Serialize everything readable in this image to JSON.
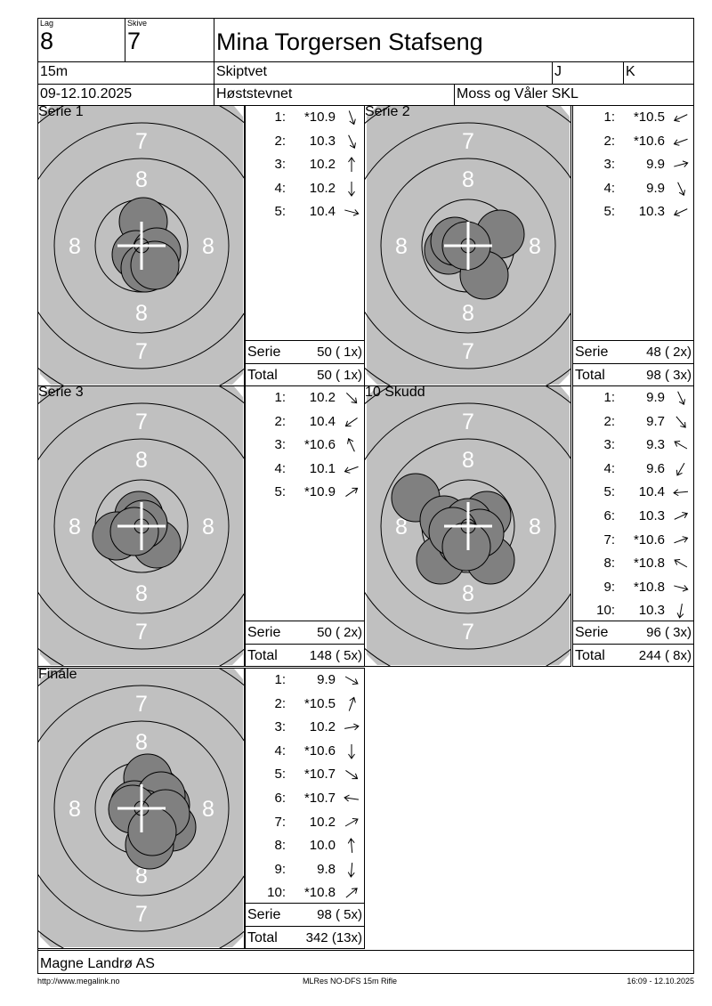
{
  "header": {
    "lag_label": "Lag",
    "lag": "8",
    "skive_label": "Skive",
    "skive": "7",
    "name": "Mina Torgersen Stafseng",
    "distance": "15m",
    "club": "Skiptvet",
    "class1": "J",
    "class2": "K",
    "date": "09-12.10.2025",
    "event": "Høststevnet",
    "organizer": "Moss og Våler SKL"
  },
  "colors": {
    "target_bg": "#c0c0c0",
    "shot": "#808080",
    "numbers": "#ffffff"
  },
  "panels": [
    {
      "title": "Serie 1",
      "shots": [
        {
          "n": "1:",
          "v": "*10.9",
          "dir": 70
        },
        {
          "n": "2:",
          "v": "10.3",
          "dir": 65
        },
        {
          "n": "3:",
          "v": "10.2",
          "dir": -90
        },
        {
          "n": "4:",
          "v": "10.2",
          "dir": 90
        },
        {
          "n": "5:",
          "v": "10.4",
          "dir": 15
        }
      ],
      "serie_label": "Serie",
      "serie": "50 ( 1x)",
      "total_label": "Total",
      "total": "50 ( 1x)"
    },
    {
      "title": "Serie 2",
      "shots": [
        {
          "n": "1:",
          "v": "*10.5",
          "dir": 155
        },
        {
          "n": "2:",
          "v": "*10.6",
          "dir": 160
        },
        {
          "n": "3:",
          "v": "9.9",
          "dir": -15
        },
        {
          "n": "4:",
          "v": "9.9",
          "dir": 65
        },
        {
          "n": "5:",
          "v": "10.3",
          "dir": 155
        }
      ],
      "serie_label": "Serie",
      "serie": "48 ( 2x)",
      "total_label": "Total",
      "total": "98 ( 3x)"
    },
    {
      "title": "Serie 3",
      "shots": [
        {
          "n": "1:",
          "v": "10.2",
          "dir": 45
        },
        {
          "n": "2:",
          "v": "10.4",
          "dir": 145
        },
        {
          "n": "3:",
          "v": "*10.6",
          "dir": -115
        },
        {
          "n": "4:",
          "v": "10.1",
          "dir": 160
        },
        {
          "n": "5:",
          "v": "*10.9",
          "dir": -35
        }
      ],
      "serie_label": "Serie",
      "serie": "50 ( 2x)",
      "total_label": "Total",
      "total": "148 ( 5x)"
    },
    {
      "title": "10 Skudd",
      "shots": [
        {
          "n": "1:",
          "v": "9.9",
          "dir": 65
        },
        {
          "n": "2:",
          "v": "9.7",
          "dir": 50
        },
        {
          "n": "3:",
          "v": "9.3",
          "dir": -150
        },
        {
          "n": "4:",
          "v": "9.6",
          "dir": 120
        },
        {
          "n": "5:",
          "v": "10.4",
          "dir": 175
        },
        {
          "n": "6:",
          "v": "10.3",
          "dir": -25
        },
        {
          "n": "7:",
          "v": "*10.6",
          "dir": -20
        },
        {
          "n": "8:",
          "v": "*10.8",
          "dir": -150
        },
        {
          "n": "9:",
          "v": "*10.8",
          "dir": 15
        },
        {
          "n": "10:",
          "v": "10.3",
          "dir": 100
        }
      ],
      "serie_label": "Serie",
      "serie": "96 ( 3x)",
      "total_label": "Total",
      "total": "244 ( 8x)"
    },
    {
      "title": "Finale",
      "shots": [
        {
          "n": "1:",
          "v": "9.9",
          "dir": 30
        },
        {
          "n": "2:",
          "v": "*10.5",
          "dir": -70
        },
        {
          "n": "3:",
          "v": "10.2",
          "dir": -10
        },
        {
          "n": "4:",
          "v": "*10.6",
          "dir": 90
        },
        {
          "n": "5:",
          "v": "*10.7",
          "dir": 35
        },
        {
          "n": "6:",
          "v": "*10.7",
          "dir": -172
        },
        {
          "n": "7:",
          "v": "10.2",
          "dir": -30
        },
        {
          "n": "8:",
          "v": "10.0",
          "dir": -95
        },
        {
          "n": "9:",
          "v": "9.8",
          "dir": 95
        },
        {
          "n": "10:",
          "v": "*10.8",
          "dir": -40
        }
      ],
      "serie_label": "Serie",
      "serie": "98 ( 5x)",
      "total_label": "Total",
      "total": "342 (13x)"
    }
  ],
  "ring_numbers": {
    "inner": "8",
    "outer": "7"
  },
  "footer": {
    "company": "Magne Landrø AS",
    "url": "http://www.megalink.no",
    "program": "MLRes NO-DFS 15m Rifle",
    "timestamp": "16:09 - 12.10.2025"
  }
}
